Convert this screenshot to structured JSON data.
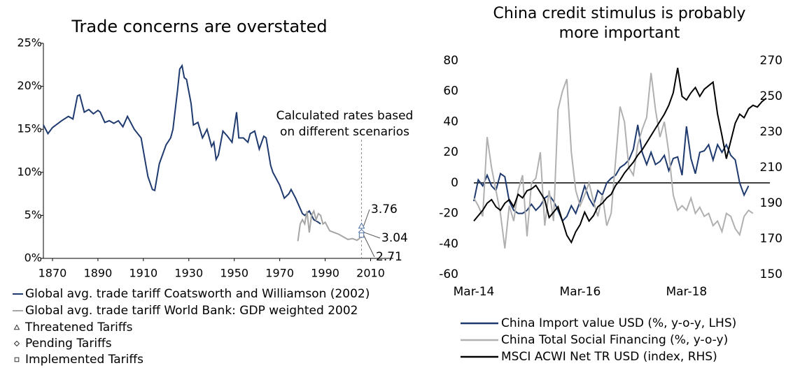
{
  "chart_data": [
    {
      "type": "line",
      "title": "Trade concerns are overstated",
      "annotation": "Calculated rates based on different scenarios",
      "xlim": [
        1866,
        2020
      ],
      "xticks": [
        1870,
        1890,
        1910,
        1930,
        1950,
        1970,
        1990,
        2010
      ],
      "ylim": [
        0,
        25
      ],
      "yticks": [
        {
          "value": 0,
          "label": "0%"
        },
        {
          "value": 5,
          "label": "5%"
        },
        {
          "value": 10,
          "label": "10%"
        },
        {
          "value": 15,
          "label": "15%"
        },
        {
          "value": 20,
          "label": "20%"
        },
        {
          "value": 25,
          "label": "25%"
        }
      ],
      "series": [
        {
          "name": "Global avg. trade tariff Coatsworth and Williamson (2002)",
          "color": "#1f3a6e",
          "x": [
            1866,
            1868,
            1870,
            1874,
            1877,
            1879,
            1881,
            1882,
            1884,
            1886,
            1888,
            1890,
            1891,
            1893,
            1895,
            1897,
            1899,
            1901,
            1903,
            1906,
            1909,
            1911,
            1912,
            1914,
            1915,
            1917,
            1920,
            1922,
            1923,
            1925,
            1926,
            1927,
            1928,
            1929,
            1931,
            1932,
            1934,
            1936,
            1938,
            1940,
            1941,
            1942,
            1943,
            1945,
            1947,
            1949,
            1951,
            1952,
            1954,
            1956,
            1957,
            1959,
            1961,
            1963,
            1964,
            1966,
            1967,
            1968,
            1970,
            1972,
            1974,
            1975,
            1977,
            1980,
            1981,
            1983,
            1985,
            1987,
            1988
          ],
          "values": [
            15.5,
            14.5,
            15.2,
            16,
            16.5,
            16.2,
            18.9,
            19,
            17,
            17.3,
            16.8,
            17.2,
            17,
            15.8,
            16,
            15.7,
            16,
            15.3,
            16.5,
            15,
            14,
            11,
            9.5,
            8,
            7.9,
            11,
            13.2,
            14,
            15,
            19.5,
            22,
            22.4,
            21,
            20.8,
            18,
            15.5,
            15.8,
            14,
            15,
            13,
            13.5,
            11.5,
            12,
            14.8,
            14.2,
            13.5,
            17,
            14,
            14,
            13.5,
            14.5,
            14.8,
            12.7,
            14.2,
            14,
            10.8,
            10,
            9.5,
            8.5,
            7,
            7.5,
            8,
            7,
            5.2,
            5,
            5.5,
            4.5,
            4.2,
            4.0
          ]
        },
        {
          "name": "Global avg. trade tariff World Bank: GDP weighted 2002",
          "color": "#a6a6a6",
          "x": [
            1978,
            1979,
            1980,
            1981,
            1982,
            1983,
            1984,
            1985,
            1986,
            1987,
            1988,
            1989,
            1990,
            1992,
            1994,
            1996,
            1998,
            2000,
            2002,
            2004,
            2005,
            2006
          ],
          "values": [
            2,
            4,
            4.5,
            4,
            5.5,
            3,
            5,
            5.5,
            4.5,
            5.2,
            5,
            4,
            4.2,
            3.2,
            3,
            2.8,
            2.5,
            2.2,
            2.3,
            2.1,
            2.3,
            2.6
          ]
        }
      ],
      "markers": [
        {
          "name": "Threatened Tariffs",
          "symbol": "triangle",
          "x": 2006,
          "value": 3.76
        },
        {
          "name": "Pending Tariffs",
          "symbol": "diamond",
          "x": 2006,
          "value": 3.04
        },
        {
          "name": "Implemented Tariffs",
          "symbol": "square",
          "x": 2006,
          "value": 2.71
        }
      ]
    },
    {
      "type": "line",
      "title": "China credit stimulus is probably more important",
      "categories": [
        "Mar-14",
        null,
        null,
        null,
        null,
        null,
        null,
        null,
        null,
        null,
        null,
        null,
        null,
        null,
        null,
        null,
        null,
        null,
        null,
        null,
        null,
        null,
        null,
        null,
        "Mar-16",
        null,
        null,
        null,
        null,
        null,
        null,
        null,
        null,
        null,
        null,
        null,
        null,
        null,
        null,
        null,
        null,
        null,
        null,
        null,
        null,
        null,
        null,
        null,
        "Mar-18",
        null,
        null,
        null,
        null,
        null,
        null,
        null,
        null,
        null,
        null,
        null,
        null,
        null,
        null,
        null,
        null,
        null,
        null
      ],
      "ylim": [
        -60,
        80
      ],
      "yticks": [
        -60,
        -40,
        -20,
        0,
        20,
        40,
        60,
        80
      ],
      "y2lim": [
        150,
        270
      ],
      "y2ticks": [
        150,
        170,
        190,
        210,
        230,
        250,
        270
      ],
      "series": [
        {
          "name": "China Import value USD (%, y-o-y, LHS)",
          "color": "#1f3a6e",
          "values": [
            -12,
            2,
            -2,
            5,
            -2,
            -5,
            6,
            4,
            -12,
            -18,
            -20,
            -20,
            -18,
            -14,
            -18,
            -15,
            -10,
            -8,
            -12,
            -18,
            -25,
            -22,
            -15,
            -20,
            -12,
            -2,
            -10,
            -15,
            -5,
            -8,
            0,
            3,
            5,
            10,
            12,
            15,
            22,
            38,
            20,
            12,
            20,
            12,
            14,
            18,
            8,
            16,
            17,
            5,
            37,
            16,
            6,
            20,
            21,
            25,
            15,
            25,
            20,
            25,
            18,
            15,
            0,
            -8,
            -2,
            null,
            null,
            null,
            null
          ]
        },
        {
          "name": "China Total Social Financing (%, y-o-y)",
          "color": "#b0b0b0",
          "values": [
            -10,
            -15,
            -22,
            30,
            10,
            -5,
            -20,
            -43,
            -15,
            -25,
            -5,
            5,
            -35,
            0,
            3,
            20,
            -28,
            -5,
            -25,
            48,
            60,
            68,
            20,
            -5,
            -15,
            -8,
            0,
            -12,
            -22,
            -8,
            -28,
            -20,
            15,
            50,
            40,
            10,
            5,
            25,
            35,
            43,
            72,
            48,
            30,
            40,
            20,
            -8,
            -18,
            -15,
            -18,
            -10,
            -20,
            -16,
            -22,
            -20,
            -28,
            -25,
            -32,
            -20,
            -22,
            -30,
            -34,
            -22,
            -18,
            -20,
            null,
            null,
            null
          ]
        },
        {
          "name": "MSCI ACWI Net TR USD (index, RHS)",
          "color": "#000000",
          "axis": "y2",
          "values": [
            180,
            183,
            186,
            190,
            192,
            188,
            186,
            190,
            192,
            188,
            195,
            193,
            197,
            198,
            200,
            196,
            192,
            182,
            185,
            188,
            180,
            172,
            168,
            174,
            178,
            185,
            180,
            183,
            188,
            190,
            193,
            195,
            200,
            203,
            207,
            210,
            213,
            217,
            220,
            224,
            228,
            232,
            236,
            240,
            245,
            252,
            266,
            250,
            248,
            252,
            255,
            250,
            254,
            256,
            258,
            240,
            228,
            215,
            225,
            235,
            240,
            238,
            243,
            245,
            244,
            247,
            249
          ]
        }
      ]
    }
  ]
}
